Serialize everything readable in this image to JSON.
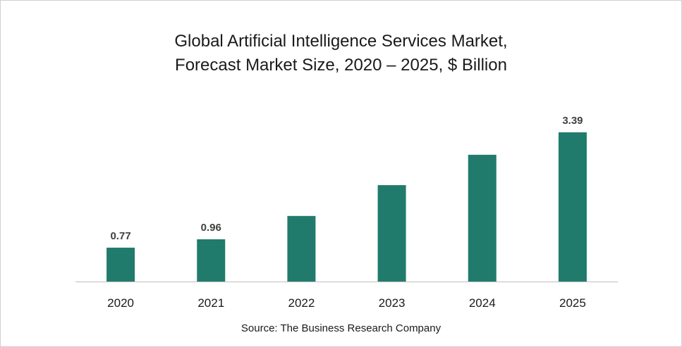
{
  "chart_data": {
    "type": "bar",
    "title": "Global Artificial Intelligence Services Market,",
    "subtitle": "Forecast Market Size, 2020 – 2025, $ Billion",
    "categories": [
      "2020",
      "2021",
      "2022",
      "2023",
      "2024",
      "2025"
    ],
    "values": [
      0.77,
      0.96,
      1.49,
      2.19,
      2.88,
      3.39
    ],
    "data_labels": [
      "0.77",
      "0.96",
      "",
      "",
      "",
      "3.39"
    ],
    "xlabel": "",
    "ylabel": "",
    "ylim": [
      0,
      3.6
    ],
    "grid": false,
    "legend": "none",
    "bar_color": "#217b6c",
    "axis_color": "#bfbfbf",
    "source": "Source: The Business Research Company"
  }
}
